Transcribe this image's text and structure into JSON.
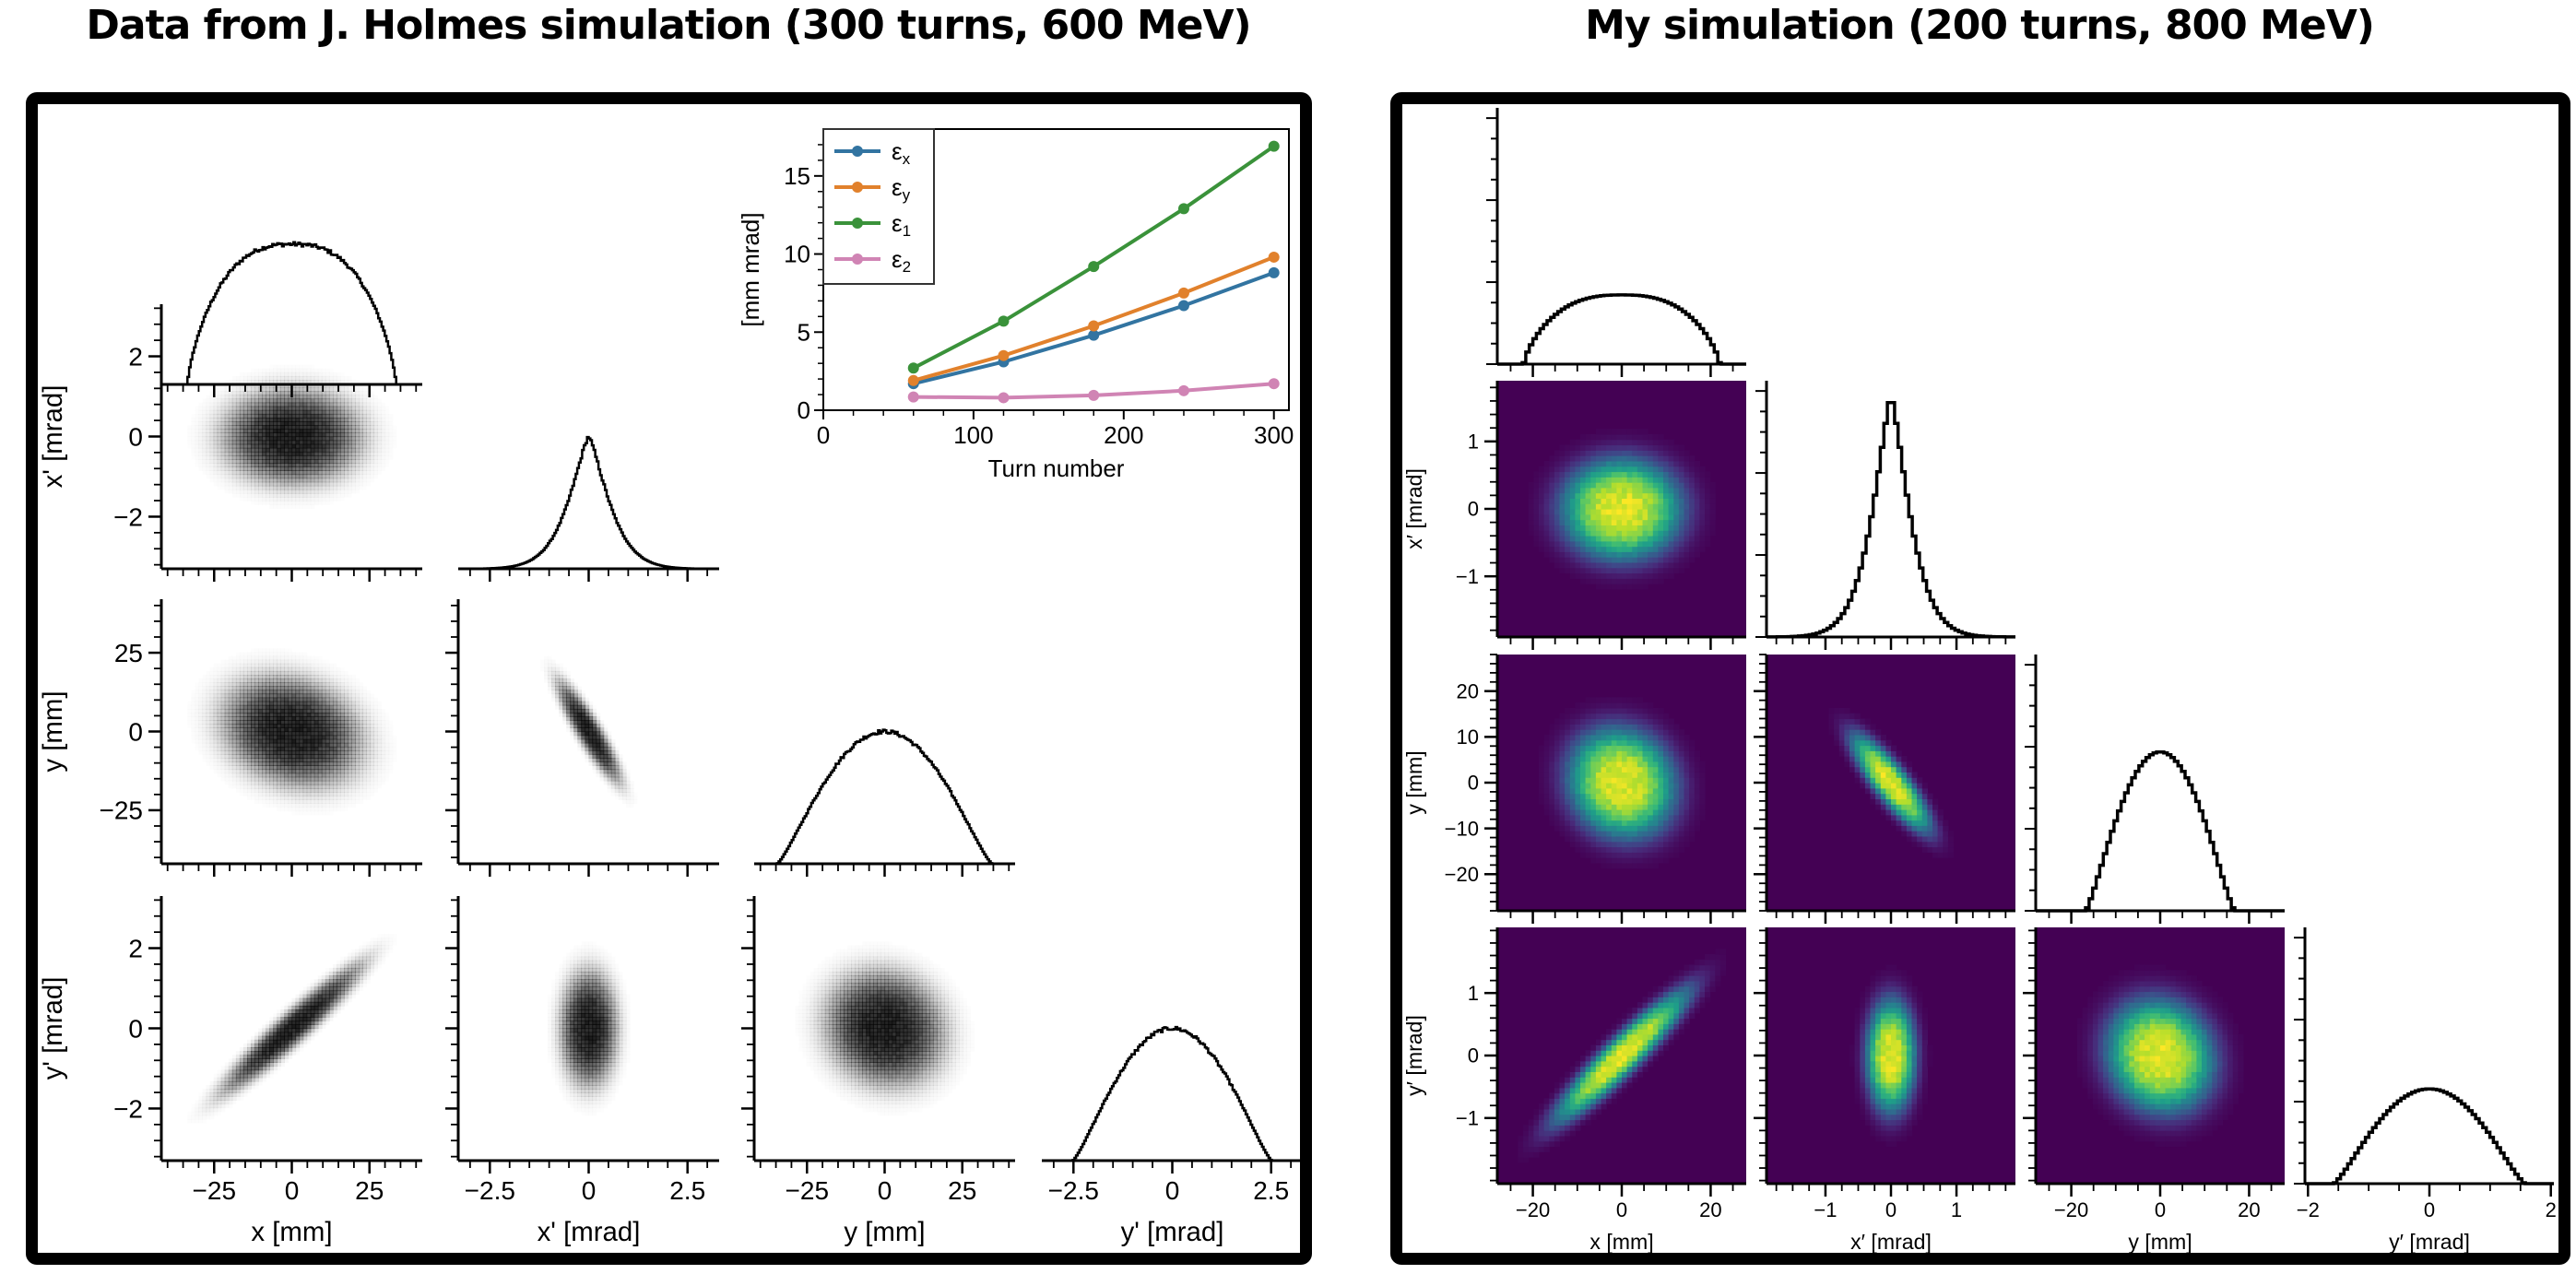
{
  "panels": [
    {
      "id": "left",
      "title": "Data from J. Holmes simulation (300 turns, 600 MeV)",
      "style": "grayscale",
      "variables": [
        "x",
        "x'",
        "y",
        "y'"
      ],
      "axis_labels": [
        "x [mm]",
        "x' [mrad]",
        "y [mm]",
        "y' [mrad]"
      ],
      "ranges": [
        [
          -42,
          42
        ],
        [
          -3.3,
          3.3
        ],
        [
          -42,
          42
        ],
        [
          -3.3,
          3.3
        ]
      ],
      "major_ticks": [
        [
          -25,
          0,
          25
        ],
        [
          -2.5,
          0,
          2.5
        ],
        [
          -25,
          0,
          25
        ],
        [
          -2.5,
          0,
          2.5
        ]
      ],
      "y_tick_labels": {
        "x'": [
          "2",
          "0",
          "−2"
        ],
        "y": [
          "25",
          "0",
          "−25"
        ],
        "y'": [
          "2",
          "0",
          "−2"
        ]
      },
      "y_major_ticks": [
        [
          -25,
          0,
          25
        ],
        [
          -2,
          0,
          2
        ],
        [
          -25,
          0,
          25
        ],
        [
          -2,
          0,
          2
        ]
      ],
      "x_tick_labels": [
        [
          "−25",
          "0",
          "25"
        ],
        [
          "−2.5",
          "0",
          "2.5"
        ],
        [
          "−25",
          "0",
          "25"
        ],
        [
          "−2.5",
          "0",
          "2.5"
        ]
      ]
    },
    {
      "id": "right",
      "title": "My simulation (200 turns, 800 MeV)",
      "style": "viridis",
      "variables": [
        "x",
        "x'",
        "y",
        "y'"
      ],
      "axis_labels": [
        "x [mm]",
        "x′ [mrad]",
        "y [mm]",
        "y′ [mrad]"
      ],
      "ranges": [
        [
          -28,
          28
        ],
        [
          -1.9,
          1.9
        ],
        [
          -28,
          28
        ],
        [
          -2.05,
          2.05
        ]
      ],
      "major_ticks": [
        [
          -20,
          0,
          20
        ],
        [
          -1,
          0,
          1
        ],
        [
          -20,
          0,
          20
        ],
        [
          -2,
          0,
          2
        ]
      ],
      "y_major_ticks": [
        [
          -20,
          0,
          20
        ],
        [
          -1,
          0,
          1
        ],
        [
          -20,
          -10,
          0,
          10,
          20
        ],
        [
          -1,
          0,
          1
        ]
      ],
      "y_tick_labels": {
        "x'": [
          "1",
          "0",
          "−1"
        ],
        "y": [
          "20",
          "10",
          "0",
          "−10",
          "−20"
        ],
        "y'": [
          "1",
          "0",
          "−1"
        ]
      },
      "x_tick_labels": [
        [
          "−20",
          "0",
          "20"
        ],
        [
          "−1",
          "0",
          "1"
        ],
        [
          "−20",
          "0",
          "20"
        ],
        [
          "−2",
          "0",
          "2"
        ]
      ]
    }
  ],
  "chart_data": [
    {
      "type": "line",
      "title": "",
      "xlabel": "Turn number",
      "ylabel": "[mm mrad]",
      "xlim": [
        0,
        310
      ],
      "ylim": [
        0,
        18
      ],
      "x_ticks": [
        0,
        100,
        200,
        300
      ],
      "y_ticks": [
        0,
        5,
        10,
        15
      ],
      "legend_position": "top-left",
      "x": [
        60,
        120,
        180,
        240,
        300
      ],
      "series": [
        {
          "name": "εx",
          "label_main": "ε",
          "label_sub": "x",
          "color": "#3274a1",
          "values": [
            1.7,
            3.1,
            4.8,
            6.7,
            8.8
          ]
        },
        {
          "name": "εy",
          "label_main": "ε",
          "label_sub": "y",
          "color": "#e1812c",
          "values": [
            1.9,
            3.5,
            5.4,
            7.5,
            9.8
          ]
        },
        {
          "name": "ε1",
          "label_main": "ε",
          "label_sub": "1",
          "color": "#3a923a",
          "values": [
            2.7,
            5.7,
            9.2,
            12.9,
            16.9
          ]
        },
        {
          "name": "ε2",
          "label_main": "ε",
          "label_sub": "2",
          "color": "#d084b4",
          "values": [
            0.85,
            0.8,
            0.95,
            1.25,
            1.7
          ]
        }
      ]
    },
    {
      "type": "scatter",
      "title": "Data from J. Holmes simulation (300 turns, 600 MeV)",
      "description": "corner plot: 1D histograms on diagonal, 2D density plots below diagonal",
      "diagonal_histograms": [
        {
          "var": "x",
          "shape": "flat-top",
          "center": 0,
          "half_width": 32
        },
        {
          "var": "x'",
          "shape": "peaked",
          "center": 0,
          "half_width": 1.6
        },
        {
          "var": "y",
          "shape": "rounded",
          "center": 0,
          "half_width": 33
        },
        {
          "var": "y'",
          "shape": "rounded",
          "center": 0,
          "half_width": 2.4
        }
      ],
      "pairs": [
        {
          "x": "x",
          "y": "x'",
          "correlation": 0.0,
          "sx": 14,
          "sy": 0.75
        },
        {
          "x": "x",
          "y": "y",
          "correlation": -0.2,
          "sx": 14,
          "sy": 11
        },
        {
          "x": "x'",
          "y": "y",
          "correlation": -0.9,
          "sx": 0.5,
          "sy": 10
        },
        {
          "x": "x",
          "y": "y'",
          "correlation": 0.95,
          "sx": 14,
          "sy": 1.0
        },
        {
          "x": "x'",
          "y": "y'",
          "correlation": 0.0,
          "sx": 0.45,
          "sy": 0.9
        },
        {
          "x": "y",
          "y": "y'",
          "correlation": -0.1,
          "sx": 12,
          "sy": 0.9
        }
      ]
    },
    {
      "type": "heatmap",
      "title": "My simulation (200 turns, 800 MeV)",
      "colormap": "viridis",
      "description": "corner plot: 1D histograms on diagonal, 2D density plots below diagonal",
      "diagonal_histograms": [
        {
          "var": "x",
          "shape": "flat-top",
          "center": 0,
          "half_width": 21
        },
        {
          "var": "x'",
          "shape": "peaked",
          "center": 0,
          "half_width": 0.9
        },
        {
          "var": "y",
          "shape": "rounded",
          "center": 0,
          "half_width": 16
        },
        {
          "var": "y'",
          "shape": "rounded",
          "center": 0,
          "half_width": 1.5
        }
      ],
      "pairs": [
        {
          "x": "x",
          "y": "x'",
          "correlation": 0.0,
          "sx": 9,
          "sy": 0.5
        },
        {
          "x": "x",
          "y": "y",
          "correlation": -0.1,
          "sx": 8,
          "sy": 8
        },
        {
          "x": "x'",
          "y": "y",
          "correlation": -0.85,
          "sx": 0.4,
          "sy": 7
        },
        {
          "x": "x",
          "y": "y'",
          "correlation": 0.93,
          "sx": 10,
          "sy": 0.7
        },
        {
          "x": "x'",
          "y": "y'",
          "correlation": 0.0,
          "sx": 0.25,
          "sy": 0.6
        },
        {
          "x": "y",
          "y": "y'",
          "correlation": -0.1,
          "sx": 8,
          "sy": 0.6
        }
      ]
    }
  ],
  "inset": {
    "xlabel": "Turn number",
    "ylabel": "[mm mrad]"
  }
}
